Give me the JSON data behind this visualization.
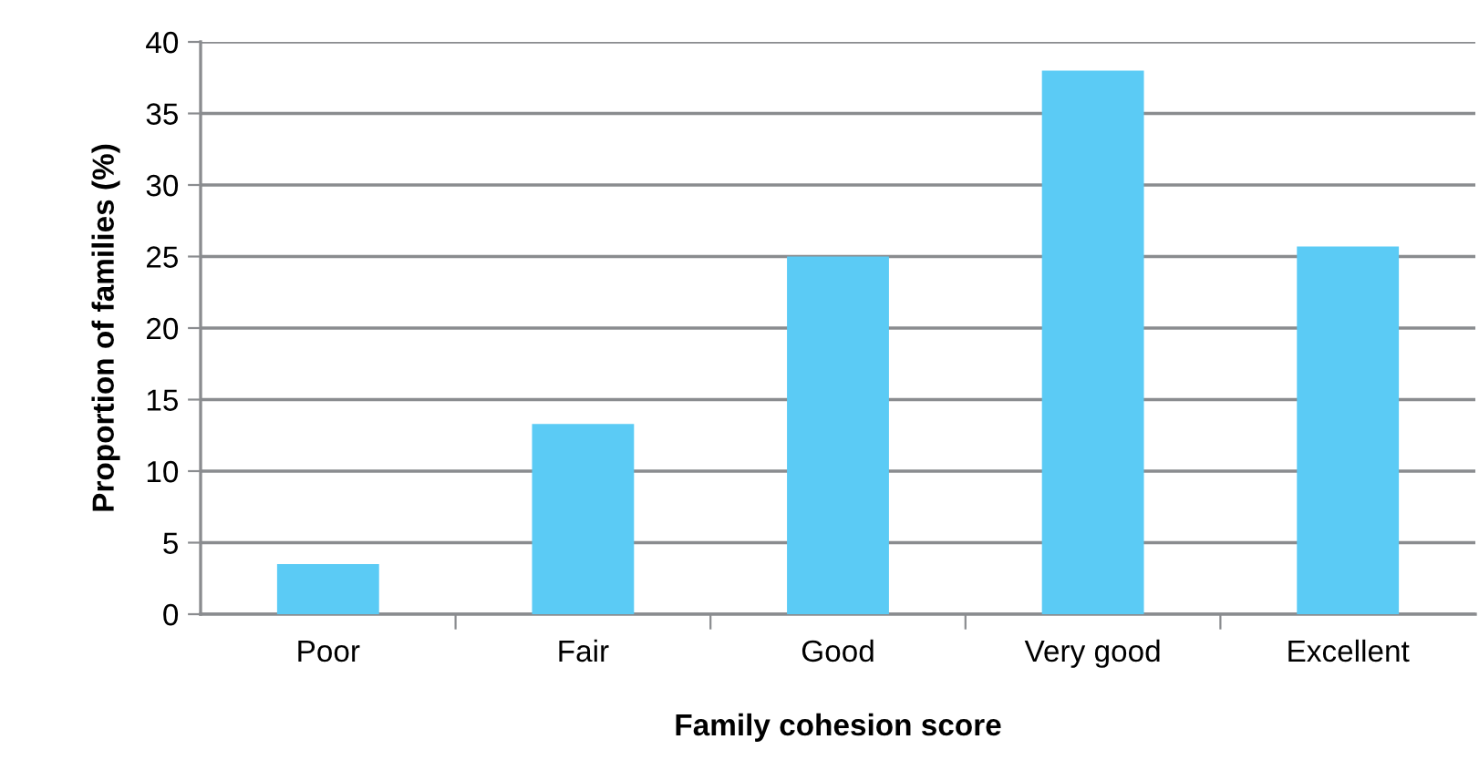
{
  "chart_data": {
    "type": "bar",
    "xlabel": "Family cohesion score",
    "ylabel": "Proportion of families (%)",
    "categories": [
      "Poor",
      "Fair",
      "Good",
      "Very good",
      "Excellent"
    ],
    "values": [
      3.5,
      13.3,
      25.0,
      38.0,
      25.7
    ],
    "color": "#5bcbf5",
    "ylim": [
      0,
      40
    ],
    "yticks": [
      0,
      5,
      10,
      15,
      20,
      25,
      30,
      35,
      40
    ],
    "grid": "y"
  }
}
